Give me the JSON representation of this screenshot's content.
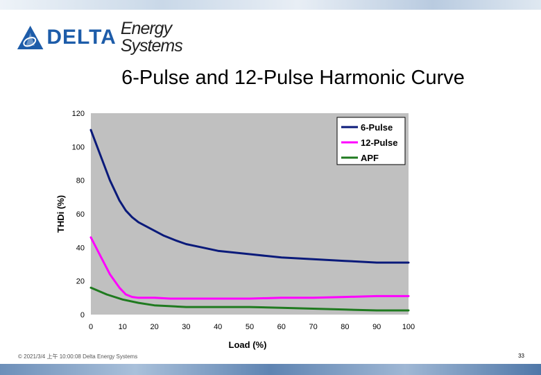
{
  "header": {
    "logo_word": "DELTA",
    "logo_sub": "Energy Systems"
  },
  "slide": {
    "title": "6-Pulse and 12-Pulse Harmonic Curve"
  },
  "footer": {
    "text": "© 2021/3/4 上午 10:00:08 Delta Energy Systems",
    "page_number": "33"
  },
  "colors": {
    "plot_background": "#c0c0c0",
    "six_pulse": "#0a1a7a",
    "twelve_pulse": "#ff00ff",
    "apf": "#1f7a1f"
  },
  "chart_data": {
    "type": "line",
    "title": "",
    "xlabel": "Load (%)",
    "ylabel": "THDi (%)",
    "xlim": [
      0,
      100
    ],
    "ylim": [
      0,
      120
    ],
    "xticks": [
      0,
      10,
      20,
      30,
      40,
      50,
      60,
      70,
      80,
      90,
      100
    ],
    "yticks": [
      0,
      20,
      40,
      60,
      80,
      100,
      120
    ],
    "grid": false,
    "legend_position": "top-right",
    "series": [
      {
        "name": "6-Pulse",
        "color": "#0a1a7a",
        "x": [
          0,
          3,
          6,
          9,
          11,
          13,
          15,
          17,
          20,
          23,
          27,
          30,
          35,
          40,
          45,
          50,
          55,
          60,
          70,
          80,
          90,
          100
        ],
        "y": [
          110,
          95,
          80,
          68,
          62,
          58,
          55,
          53,
          50,
          47,
          44,
          42,
          40,
          38,
          37,
          36,
          35,
          34,
          33,
          32,
          31,
          31
        ]
      },
      {
        "name": "12-Pulse",
        "color": "#ff00ff",
        "x": [
          0,
          3,
          6,
          9,
          11,
          13,
          15,
          20,
          25,
          30,
          40,
          50,
          60,
          70,
          80,
          90,
          100
        ],
        "y": [
          46,
          35,
          24,
          16,
          12,
          10.5,
          10,
          10,
          9.5,
          9.5,
          9.5,
          9.5,
          10,
          10,
          10.5,
          11,
          11
        ]
      },
      {
        "name": "APF",
        "color": "#1f7a1f",
        "x": [
          0,
          5,
          10,
          15,
          20,
          25,
          30,
          40,
          50,
          60,
          70,
          80,
          90,
          100
        ],
        "y": [
          16,
          12,
          9,
          7,
          5.5,
          5,
          4.5,
          4.5,
          4.5,
          4,
          3.5,
          3,
          2.5,
          2.5
        ]
      }
    ]
  }
}
